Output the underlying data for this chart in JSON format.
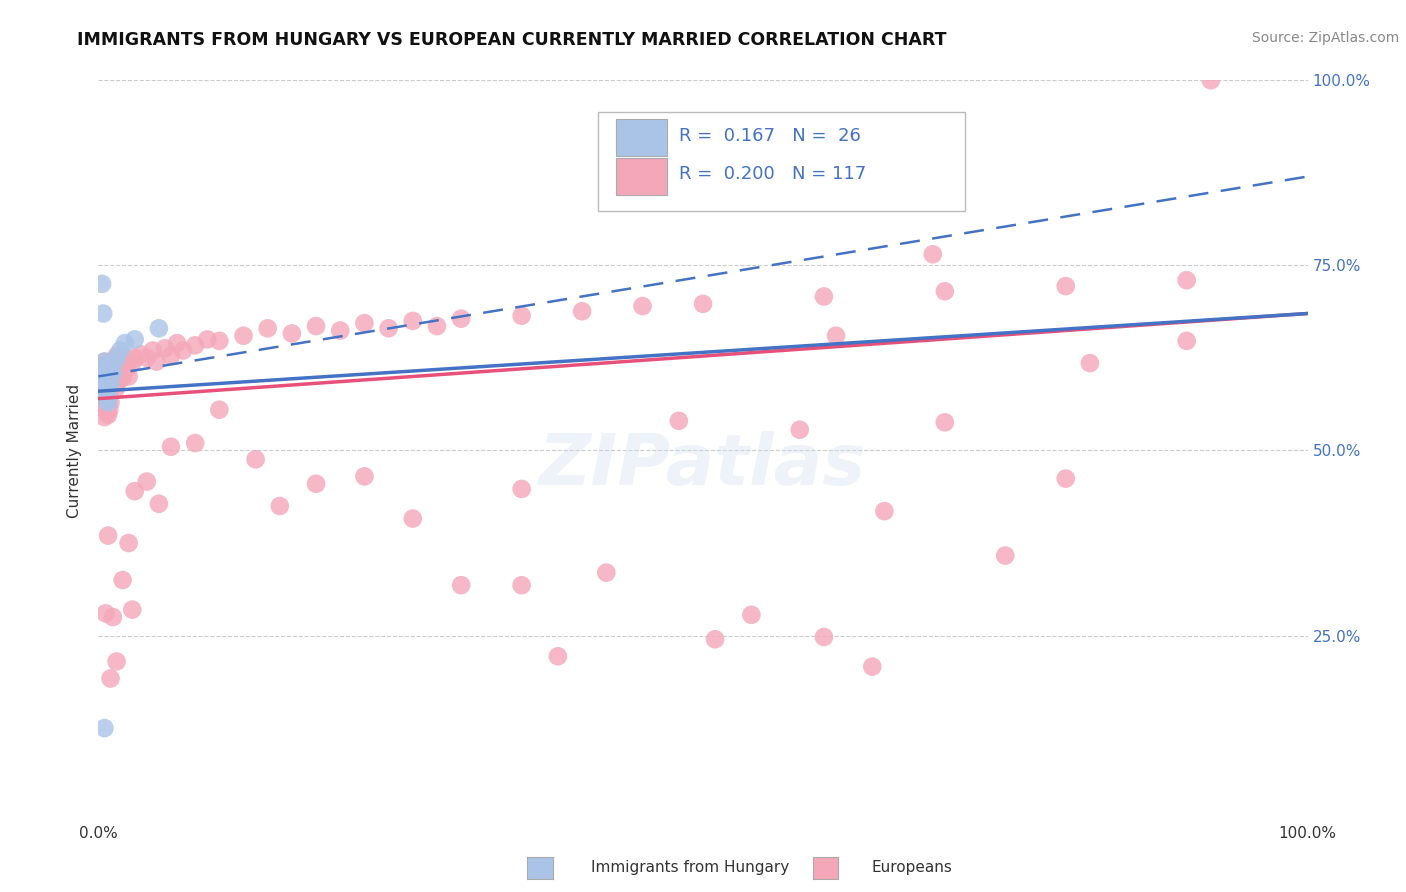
{
  "title": "IMMIGRANTS FROM HUNGARY VS EUROPEAN CURRENTLY MARRIED CORRELATION CHART",
  "source_text": "Source: ZipAtlas.com",
  "ylabel": "Currently Married",
  "xlim": [
    0.0,
    1.0
  ],
  "ylim": [
    0.0,
    1.0
  ],
  "hungary_color": "#aac4e8",
  "european_color": "#f4a7b9",
  "hungary_line_color": "#4472c4",
  "european_line_color": "#e8507a",
  "european_dash_color": "#4472c4",
  "grid_color": "#cccccc",
  "background_color": "#ffffff",
  "R1": 0.167,
  "N1": 26,
  "R2": 0.2,
  "N2": 117,
  "hungary_points": [
    [
      0.003,
      0.725
    ],
    [
      0.004,
      0.685
    ],
    [
      0.005,
      0.62
    ],
    [
      0.005,
      0.6
    ],
    [
      0.005,
      0.58
    ],
    [
      0.006,
      0.615
    ],
    [
      0.006,
      0.6
    ],
    [
      0.006,
      0.575
    ],
    [
      0.007,
      0.605
    ],
    [
      0.007,
      0.59
    ],
    [
      0.007,
      0.568
    ],
    [
      0.008,
      0.598
    ],
    [
      0.008,
      0.58
    ],
    [
      0.008,
      0.565
    ],
    [
      0.009,
      0.61
    ],
    [
      0.01,
      0.6
    ],
    [
      0.01,
      0.59
    ],
    [
      0.011,
      0.615
    ],
    [
      0.012,
      0.605
    ],
    [
      0.013,
      0.62
    ],
    [
      0.015,
      0.625
    ],
    [
      0.018,
      0.635
    ],
    [
      0.022,
      0.645
    ],
    [
      0.03,
      0.65
    ],
    [
      0.05,
      0.665
    ],
    [
      0.005,
      0.125
    ]
  ],
  "european_points": [
    [
      0.004,
      0.595
    ],
    [
      0.004,
      0.575
    ],
    [
      0.005,
      0.62
    ],
    [
      0.005,
      0.558
    ],
    [
      0.005,
      0.598
    ],
    [
      0.005,
      0.578
    ],
    [
      0.005,
      0.545
    ],
    [
      0.006,
      0.6
    ],
    [
      0.006,
      0.58
    ],
    [
      0.006,
      0.56
    ],
    [
      0.006,
      0.57
    ],
    [
      0.007,
      0.615
    ],
    [
      0.007,
      0.595
    ],
    [
      0.007,
      0.572
    ],
    [
      0.007,
      0.552
    ],
    [
      0.008,
      0.608
    ],
    [
      0.008,
      0.588
    ],
    [
      0.008,
      0.567
    ],
    [
      0.008,
      0.548
    ],
    [
      0.009,
      0.615
    ],
    [
      0.009,
      0.595
    ],
    [
      0.009,
      0.575
    ],
    [
      0.009,
      0.555
    ],
    [
      0.01,
      0.605
    ],
    [
      0.01,
      0.585
    ],
    [
      0.01,
      0.565
    ],
    [
      0.011,
      0.61
    ],
    [
      0.011,
      0.59
    ],
    [
      0.012,
      0.618
    ],
    [
      0.012,
      0.598
    ],
    [
      0.013,
      0.605
    ],
    [
      0.013,
      0.622
    ],
    [
      0.014,
      0.6
    ],
    [
      0.014,
      0.582
    ],
    [
      0.015,
      0.612
    ],
    [
      0.015,
      0.628
    ],
    [
      0.016,
      0.61
    ],
    [
      0.017,
      0.595
    ],
    [
      0.018,
      0.62
    ],
    [
      0.019,
      0.608
    ],
    [
      0.02,
      0.618
    ],
    [
      0.02,
      0.598
    ],
    [
      0.022,
      0.608
    ],
    [
      0.022,
      0.625
    ],
    [
      0.024,
      0.612
    ],
    [
      0.025,
      0.6
    ],
    [
      0.028,
      0.618
    ],
    [
      0.03,
      0.625
    ],
    [
      0.035,
      0.63
    ],
    [
      0.04,
      0.625
    ],
    [
      0.045,
      0.635
    ],
    [
      0.048,
      0.62
    ],
    [
      0.055,
      0.638
    ],
    [
      0.06,
      0.628
    ],
    [
      0.065,
      0.645
    ],
    [
      0.07,
      0.635
    ],
    [
      0.08,
      0.642
    ],
    [
      0.09,
      0.65
    ],
    [
      0.1,
      0.648
    ],
    [
      0.12,
      0.655
    ],
    [
      0.14,
      0.665
    ],
    [
      0.16,
      0.658
    ],
    [
      0.18,
      0.668
    ],
    [
      0.2,
      0.662
    ],
    [
      0.22,
      0.672
    ],
    [
      0.24,
      0.665
    ],
    [
      0.26,
      0.675
    ],
    [
      0.28,
      0.668
    ],
    [
      0.3,
      0.678
    ],
    [
      0.35,
      0.682
    ],
    [
      0.4,
      0.688
    ],
    [
      0.45,
      0.695
    ],
    [
      0.5,
      0.698
    ],
    [
      0.6,
      0.708
    ],
    [
      0.7,
      0.715
    ],
    [
      0.8,
      0.722
    ],
    [
      0.9,
      0.73
    ],
    [
      0.92,
      1.0
    ],
    [
      0.006,
      0.28
    ],
    [
      0.008,
      0.385
    ],
    [
      0.012,
      0.275
    ],
    [
      0.02,
      0.325
    ],
    [
      0.025,
      0.375
    ],
    [
      0.028,
      0.285
    ],
    [
      0.03,
      0.445
    ],
    [
      0.04,
      0.458
    ],
    [
      0.06,
      0.505
    ],
    [
      0.08,
      0.51
    ],
    [
      0.1,
      0.555
    ],
    [
      0.13,
      0.488
    ],
    [
      0.15,
      0.425
    ],
    [
      0.18,
      0.455
    ],
    [
      0.22,
      0.465
    ],
    [
      0.26,
      0.408
    ],
    [
      0.3,
      0.318
    ],
    [
      0.35,
      0.318
    ],
    [
      0.38,
      0.222
    ],
    [
      0.48,
      0.54
    ],
    [
      0.54,
      0.278
    ],
    [
      0.6,
      0.248
    ],
    [
      0.61,
      0.655
    ],
    [
      0.65,
      0.418
    ],
    [
      0.69,
      0.765
    ],
    [
      0.7,
      0.538
    ],
    [
      0.75,
      0.358
    ],
    [
      0.8,
      0.462
    ],
    [
      0.82,
      0.618
    ],
    [
      0.9,
      0.648
    ],
    [
      0.01,
      0.192
    ],
    [
      0.015,
      0.215
    ],
    [
      0.35,
      0.448
    ],
    [
      0.42,
      0.335
    ],
    [
      0.51,
      0.245
    ],
    [
      0.58,
      0.528
    ],
    [
      0.64,
      0.208
    ],
    [
      0.05,
      0.428
    ]
  ]
}
